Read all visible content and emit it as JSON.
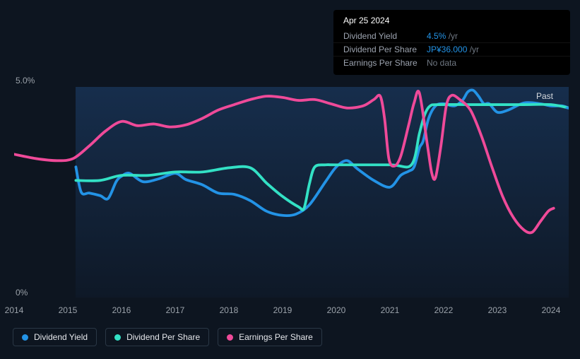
{
  "tooltip": {
    "date": "Apr 25 2024",
    "rows": [
      {
        "label": "Dividend Yield",
        "value": "4.5%",
        "suffix": "/yr",
        "value_color": "#2393e6"
      },
      {
        "label": "Dividend Per Share",
        "value": "JP¥36.000",
        "suffix": "/yr",
        "value_color": "#2393e6"
      },
      {
        "label": "Earnings Per Share",
        "value": "No data",
        "suffix": "",
        "value_color": "#6f7782"
      }
    ]
  },
  "chart": {
    "type": "line",
    "background_color": "#0d1520",
    "shade_color_top": "rgba(27,59,100,0.65)",
    "shade_color_bot": "rgba(20,40,70,0.18)",
    "past_label": "Past",
    "y_axis": {
      "max_label": "5.0%",
      "min_label": "0%",
      "ymin": 0,
      "ymax": 5.0
    },
    "x_axis": {
      "min": 2014,
      "max": 2024.33,
      "shade_start": 2015.15,
      "ticks": [
        2014,
        2015,
        2016,
        2017,
        2018,
        2019,
        2020,
        2021,
        2022,
        2023,
        2024
      ]
    },
    "line_width": 3,
    "series": [
      {
        "name": "Dividend Yield",
        "color": "#2393e6",
        "points": [
          [
            2015.15,
            3.1
          ],
          [
            2015.25,
            2.5
          ],
          [
            2015.4,
            2.48
          ],
          [
            2015.6,
            2.42
          ],
          [
            2015.75,
            2.35
          ],
          [
            2015.9,
            2.75
          ],
          [
            2016.0,
            2.88
          ],
          [
            2016.15,
            2.95
          ],
          [
            2016.4,
            2.75
          ],
          [
            2016.7,
            2.82
          ],
          [
            2017.0,
            2.95
          ],
          [
            2017.2,
            2.8
          ],
          [
            2017.5,
            2.68
          ],
          [
            2017.8,
            2.48
          ],
          [
            2018.1,
            2.45
          ],
          [
            2018.4,
            2.3
          ],
          [
            2018.7,
            2.05
          ],
          [
            2019.0,
            1.95
          ],
          [
            2019.25,
            1.98
          ],
          [
            2019.5,
            2.2
          ],
          [
            2019.8,
            2.75
          ],
          [
            2020.0,
            3.1
          ],
          [
            2020.2,
            3.25
          ],
          [
            2020.4,
            3.05
          ],
          [
            2020.7,
            2.78
          ],
          [
            2021.0,
            2.62
          ],
          [
            2021.2,
            2.9
          ],
          [
            2021.35,
            3.0
          ],
          [
            2021.45,
            3.1
          ],
          [
            2021.55,
            3.55
          ],
          [
            2021.62,
            3.72
          ],
          [
            2021.72,
            4.25
          ],
          [
            2021.85,
            4.55
          ],
          [
            2022.0,
            4.6
          ],
          [
            2022.2,
            4.55
          ],
          [
            2022.35,
            4.68
          ],
          [
            2022.45,
            4.88
          ],
          [
            2022.55,
            4.92
          ],
          [
            2022.65,
            4.78
          ],
          [
            2022.75,
            4.6
          ],
          [
            2022.85,
            4.6
          ],
          [
            2023.0,
            4.4
          ],
          [
            2023.2,
            4.45
          ],
          [
            2023.5,
            4.62
          ],
          [
            2023.8,
            4.6
          ],
          [
            2024.0,
            4.55
          ],
          [
            2024.2,
            4.55
          ],
          [
            2024.33,
            4.5
          ]
        ]
      },
      {
        "name": "Dividend Per Share",
        "color": "#33e1c5",
        "points": [
          [
            2015.15,
            2.78
          ],
          [
            2015.6,
            2.78
          ],
          [
            2016.0,
            2.9
          ],
          [
            2016.5,
            2.9
          ],
          [
            2017.0,
            2.98
          ],
          [
            2017.5,
            2.98
          ],
          [
            2018.0,
            3.08
          ],
          [
            2018.4,
            3.08
          ],
          [
            2018.7,
            2.72
          ],
          [
            2019.0,
            2.4
          ],
          [
            2019.3,
            2.15
          ],
          [
            2019.4,
            2.12
          ],
          [
            2019.5,
            2.7
          ],
          [
            2019.6,
            3.1
          ],
          [
            2019.8,
            3.15
          ],
          [
            2020.0,
            3.15
          ],
          [
            2021.0,
            3.15
          ],
          [
            2021.4,
            3.15
          ],
          [
            2021.55,
            3.9
          ],
          [
            2021.65,
            4.35
          ],
          [
            2021.75,
            4.55
          ],
          [
            2021.9,
            4.58
          ],
          [
            2022.5,
            4.58
          ],
          [
            2023.0,
            4.58
          ],
          [
            2023.5,
            4.58
          ],
          [
            2024.0,
            4.58
          ],
          [
            2024.33,
            4.5
          ]
        ]
      },
      {
        "name": "Earnings Per Share",
        "color": "#ef4a99",
        "points": [
          [
            2014.0,
            3.4
          ],
          [
            2014.4,
            3.3
          ],
          [
            2014.8,
            3.25
          ],
          [
            2015.1,
            3.3
          ],
          [
            2015.4,
            3.6
          ],
          [
            2015.7,
            3.95
          ],
          [
            2016.0,
            4.18
          ],
          [
            2016.3,
            4.08
          ],
          [
            2016.6,
            4.12
          ],
          [
            2016.9,
            4.05
          ],
          [
            2017.2,
            4.1
          ],
          [
            2017.5,
            4.25
          ],
          [
            2017.8,
            4.45
          ],
          [
            2018.1,
            4.58
          ],
          [
            2018.4,
            4.7
          ],
          [
            2018.7,
            4.78
          ],
          [
            2019.0,
            4.75
          ],
          [
            2019.3,
            4.68
          ],
          [
            2019.6,
            4.7
          ],
          [
            2019.9,
            4.6
          ],
          [
            2020.2,
            4.5
          ],
          [
            2020.5,
            4.55
          ],
          [
            2020.7,
            4.7
          ],
          [
            2020.82,
            4.78
          ],
          [
            2020.9,
            4.25
          ],
          [
            2020.98,
            3.3
          ],
          [
            2021.08,
            3.12
          ],
          [
            2021.2,
            3.35
          ],
          [
            2021.35,
            4.1
          ],
          [
            2021.45,
            4.62
          ],
          [
            2021.55,
            4.85
          ],
          [
            2021.7,
            3.6
          ],
          [
            2021.78,
            2.95
          ],
          [
            2021.85,
            2.85
          ],
          [
            2021.95,
            3.6
          ],
          [
            2022.05,
            4.55
          ],
          [
            2022.15,
            4.8
          ],
          [
            2022.3,
            4.7
          ],
          [
            2022.5,
            4.45
          ],
          [
            2022.7,
            3.85
          ],
          [
            2022.9,
            3.1
          ],
          [
            2023.1,
            2.4
          ],
          [
            2023.3,
            1.9
          ],
          [
            2023.5,
            1.6
          ],
          [
            2023.65,
            1.55
          ],
          [
            2023.8,
            1.8
          ],
          [
            2023.95,
            2.05
          ],
          [
            2024.05,
            2.12
          ]
        ]
      }
    ]
  },
  "legend": {
    "items": [
      {
        "label": "Dividend Yield",
        "color": "#2393e6"
      },
      {
        "label": "Dividend Per Share",
        "color": "#33e1c5"
      },
      {
        "label": "Earnings Per Share",
        "color": "#ef4a99"
      }
    ]
  }
}
